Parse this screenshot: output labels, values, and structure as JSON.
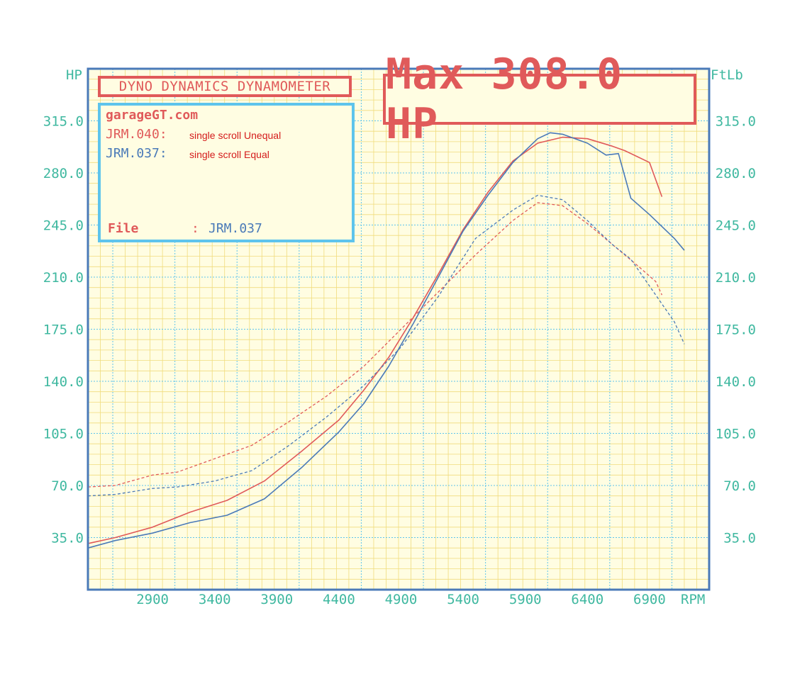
{
  "chart_data": {
    "type": "line",
    "title": "DYNO DYNAMICS DYNAMOMETER",
    "max_label": "Max 308.0 HP",
    "ylabel_left": "HP",
    "ylabel_right": "FtLb",
    "xlabel": "RPM",
    "x_ticks": [
      "2900",
      "3400",
      "3900",
      "4400",
      "4900",
      "5400",
      "5900",
      "6400",
      "6900"
    ],
    "y_ticks": [
      "35.0",
      "70.0",
      "105.0",
      "140.0",
      "175.0",
      "210.0",
      "245.0",
      "280.0",
      "315.0"
    ],
    "xlim": [
      2380,
      7380
    ],
    "ylim": [
      0,
      350
    ],
    "grid": true,
    "legend": {
      "site": "garageGT.com",
      "entries": [
        {
          "name": "JRM.040:",
          "note": "single scroll Unequal",
          "color": "#e05a5a"
        },
        {
          "name": "JRM.037:",
          "note": "single scroll Equal",
          "color": "#4a7ab8"
        }
      ],
      "file_label": "File",
      "file_sep": ":",
      "file_value": "JRM.037"
    },
    "series": [
      {
        "key": "hp_unequal",
        "color": "#e05a5a",
        "dashed": false,
        "x": [
          2380,
          2600,
          2900,
          3200,
          3500,
          3800,
          4100,
          4400,
          4600,
          4800,
          5000,
          5200,
          5400,
          5600,
          5800,
          6000,
          6200,
          6400,
          6600,
          6700,
          6800,
          6900,
          7000
        ],
        "y": [
          31,
          35,
          42,
          52,
          60,
          73,
          93,
          114,
          134,
          156,
          183,
          212,
          242,
          267,
          288,
          300,
          304,
          303,
          298,
          295,
          291,
          287,
          264
        ]
      },
      {
        "key": "hp_equal",
        "color": "#4a7ab8",
        "dashed": false,
        "x": [
          2380,
          2600,
          2900,
          3200,
          3500,
          3800,
          4100,
          4400,
          4600,
          4800,
          5000,
          5200,
          5400,
          5600,
          5800,
          6000,
          6100,
          6200,
          6400,
          6550,
          6650,
          6750,
          6900,
          7100,
          7180
        ],
        "y": [
          28,
          33,
          38,
          45,
          50,
          61,
          82,
          106,
          125,
          150,
          179,
          210,
          241,
          265,
          287,
          303,
          307,
          306,
          300,
          292,
          293,
          263,
          252,
          236,
          228
        ]
      },
      {
        "key": "tq_unequal",
        "color": "#e05a5a",
        "dashed": true,
        "x": [
          2380,
          2600,
          2900,
          3100,
          3400,
          3700,
          4000,
          4300,
          4600,
          4900,
          5200,
          5500,
          5800,
          6000,
          6200,
          6400,
          6600,
          6800,
          6950,
          7000
        ],
        "y": [
          69,
          70,
          77,
          79,
          88,
          97,
          113,
          130,
          150,
          175,
          200,
          225,
          248,
          260,
          258,
          246,
          232,
          218,
          207,
          198
        ]
      },
      {
        "key": "tq_equal",
        "color": "#4a7ab8",
        "dashed": true,
        "x": [
          2380,
          2600,
          2900,
          3100,
          3400,
          3700,
          4000,
          4300,
          4600,
          4900,
          5200,
          5500,
          5800,
          6000,
          6200,
          6400,
          6600,
          6750,
          6900,
          7100,
          7180
        ],
        "y": [
          63,
          64,
          68,
          69,
          73,
          80,
          97,
          116,
          137,
          163,
          197,
          236,
          255,
          265,
          262,
          248,
          232,
          222,
          204,
          180,
          165
        ]
      }
    ]
  }
}
